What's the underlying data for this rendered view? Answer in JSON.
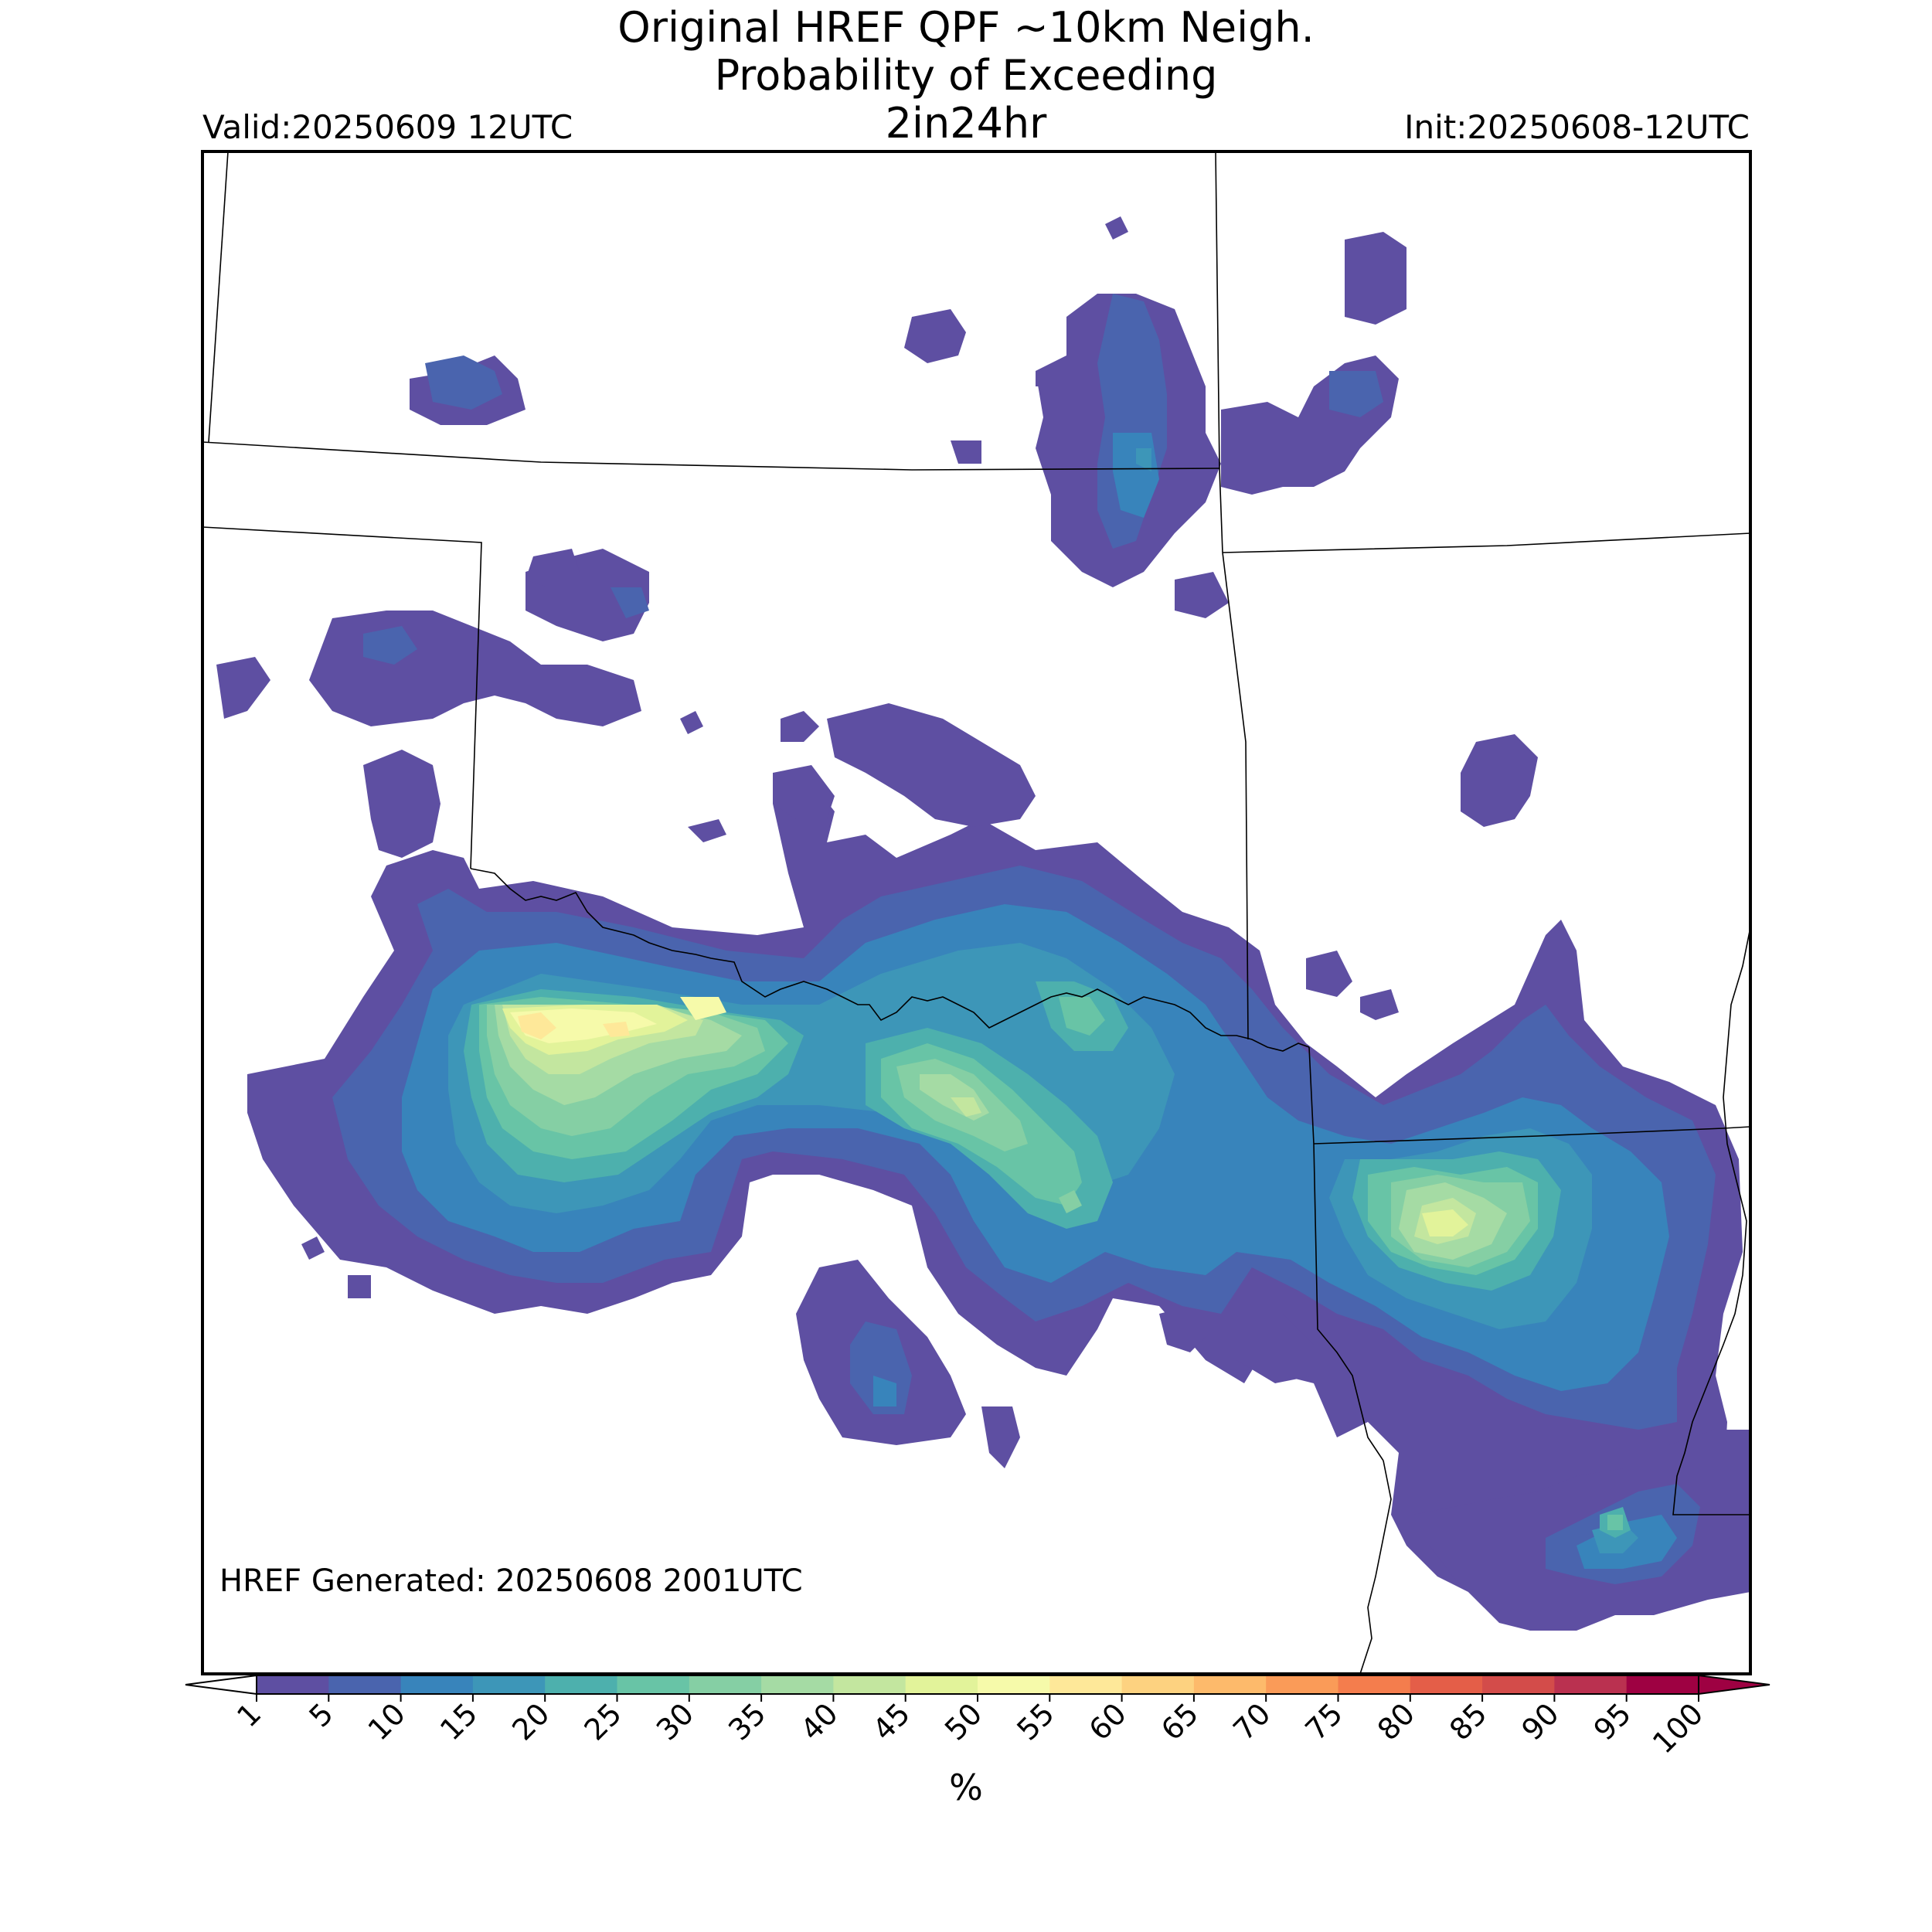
{
  "title": {
    "line1": "Original HREF QPF ~10km Neigh.",
    "line2": "Probability of Exceeding",
    "line3": "2in24hr"
  },
  "valid": "Valid:20250609 12UTC",
  "init": "Init:20250608-12UTC",
  "generated": "HREF Generated: 20250608 2001UTC",
  "colorbar": {
    "unit": "%",
    "extend": "both",
    "levels": [
      "1",
      "5",
      "10",
      "15",
      "20",
      "25",
      "30",
      "35",
      "40",
      "45",
      "50",
      "55",
      "60",
      "65",
      "70",
      "75",
      "80",
      "85",
      "90",
      "95",
      "100"
    ],
    "colors": [
      "#5e4fa2",
      "#4a64ae",
      "#3884bb",
      "#3d96b8",
      "#4db0ad",
      "#68c4a6",
      "#85cfa4",
      "#a5dba4",
      "#c3e69f",
      "#e2f39a",
      "#f6faaa",
      "#fee899",
      "#fdd280",
      "#fdba6b",
      "#fa9b58",
      "#f47d4d",
      "#e45e48",
      "#d34c4a",
      "#ba3150",
      "#9e0142"
    ]
  },
  "map": {
    "style": "filled probability contours with state and river boundary lines",
    "lowest_color": "#5e4fa2"
  }
}
